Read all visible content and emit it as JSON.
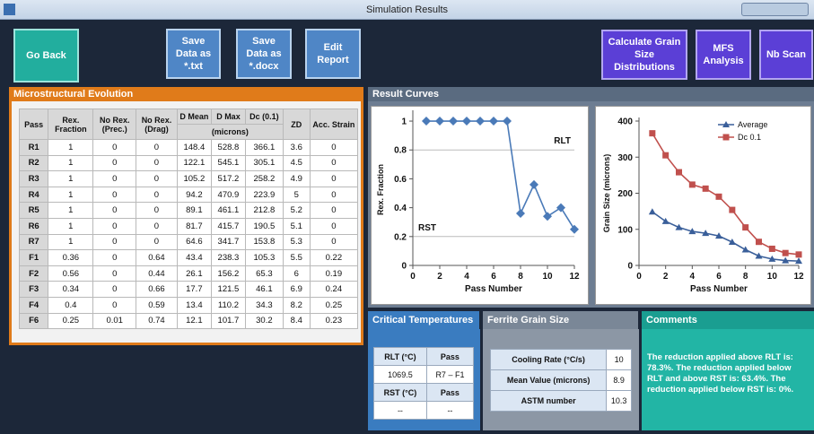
{
  "window": {
    "title": "Simulation Results"
  },
  "buttons": [
    "Go Back",
    "Save Data as *.txt",
    "Save Data as *.docx",
    "Edit Report",
    "Calculate Grain Size Distributions",
    "MFS Analysis",
    "Nb Scan"
  ],
  "micro": {
    "title": "Microstructural Evolution",
    "headers": [
      "Pass",
      "Rex. Fraction",
      "No Rex. (Prec.)",
      "No Rex. (Drag)",
      "D Mean",
      "D Max",
      "Dc (0.1)",
      "ZD",
      "Acc. Strain"
    ],
    "units": "(microns)",
    "rows": [
      [
        "R1",
        1,
        0,
        0,
        148.4,
        528.8,
        366.1,
        3.6,
        0
      ],
      [
        "R2",
        1,
        0,
        0,
        122.1,
        545.1,
        305.1,
        4.5,
        0
      ],
      [
        "R3",
        1,
        0,
        0,
        105.2,
        517.2,
        258.2,
        4.9,
        0
      ],
      [
        "R4",
        1,
        0,
        0,
        94.2,
        470.9,
        223.9,
        5,
        0
      ],
      [
        "R5",
        1,
        0,
        0,
        89.1,
        461.1,
        212.8,
        5.2,
        0
      ],
      [
        "R6",
        1,
        0,
        0,
        81.7,
        415.7,
        190.5,
        5.1,
        0
      ],
      [
        "R7",
        1,
        0,
        0,
        64.6,
        341.7,
        153.8,
        5.3,
        0
      ],
      [
        "F1",
        0.36,
        0,
        0.64,
        43.4,
        238.3,
        105.3,
        5.5,
        0.22
      ],
      [
        "F2",
        0.56,
        0,
        0.44,
        26.1,
        156.2,
        65.3,
        6,
        0.19
      ],
      [
        "F3",
        0.34,
        0,
        0.66,
        17.7,
        121.5,
        46.1,
        6.9,
        0.24
      ],
      [
        "F4",
        0.4,
        0,
        0.59,
        13.4,
        110.2,
        34.3,
        8.2,
        0.25
      ],
      [
        "F6",
        0.25,
        0.01,
        0.74,
        12.1,
        101.7,
        30.2,
        8.4,
        0.23
      ]
    ]
  },
  "result_title": "Result Curves",
  "chart_data": [
    {
      "type": "line",
      "xlabel": "Pass Number",
      "ylabel": "Rex. Fraction",
      "x": [
        1,
        2,
        3,
        4,
        5,
        6,
        7,
        8,
        9,
        10,
        11,
        12
      ],
      "values": [
        1,
        1,
        1,
        1,
        1,
        1,
        1,
        0.36,
        0.56,
        0.34,
        0.4,
        0.25
      ],
      "color": "#4a7ab8",
      "marker": "diamond",
      "xlim": [
        0,
        12
      ],
      "xticks": [
        0,
        2,
        4,
        6,
        8,
        10,
        12
      ],
      "ylim": [
        0,
        1.05
      ],
      "yticks": [
        0,
        0.2,
        0.4,
        0.6,
        0.8,
        1
      ],
      "reference_lines": [
        {
          "label": "RLT",
          "value": 0.8
        },
        {
          "label": "RST",
          "value": 0.2
        }
      ]
    },
    {
      "type": "line",
      "xlabel": "Pass Number",
      "ylabel": "Grain Size (microns)",
      "x": [
        1,
        2,
        3,
        4,
        5,
        6,
        7,
        8,
        9,
        10,
        11,
        12
      ],
      "series": [
        {
          "name": "Average",
          "color": "#3a5f9a",
          "marker": "triangle",
          "values": [
            148.4,
            122.1,
            105.2,
            94.2,
            89.1,
            81.7,
            64.6,
            43.4,
            26.1,
            17.7,
            13.4,
            12.1
          ]
        },
        {
          "name": "Dc 0.1",
          "color": "#c0504d",
          "marker": "square",
          "values": [
            366.1,
            305.1,
            258.2,
            223.9,
            212.8,
            190.5,
            153.8,
            105.3,
            65.3,
            46.1,
            34.3,
            30.2
          ]
        }
      ],
      "xlim": [
        0,
        12
      ],
      "xticks": [
        0,
        2,
        4,
        6,
        8,
        10,
        12
      ],
      "ylim": [
        0,
        400
      ],
      "yticks": [
        0,
        100,
        200,
        300,
        400
      ],
      "legend": "upper right"
    }
  ],
  "critical": {
    "title": "Critical Temperatures",
    "rows": [
      [
        "RLT (°C)",
        "Pass"
      ],
      [
        "1069.5",
        "R7 – F1"
      ],
      [
        "RST (°C)",
        "Pass"
      ],
      [
        "--",
        "--"
      ]
    ]
  },
  "ferrite": {
    "title": "Ferrite Grain Size",
    "rows": [
      [
        "Cooling Rate (°C/s)",
        10
      ],
      [
        "Mean Value (microns)",
        8.9
      ],
      [
        "ASTM number",
        10.3
      ]
    ]
  },
  "comments": {
    "title": "Comments",
    "text": "The reduction applied above RLT is: 78.3%. The reduction applied below RLT and above RST is: 63.4%. The reduction applied below RST is: 0%."
  }
}
